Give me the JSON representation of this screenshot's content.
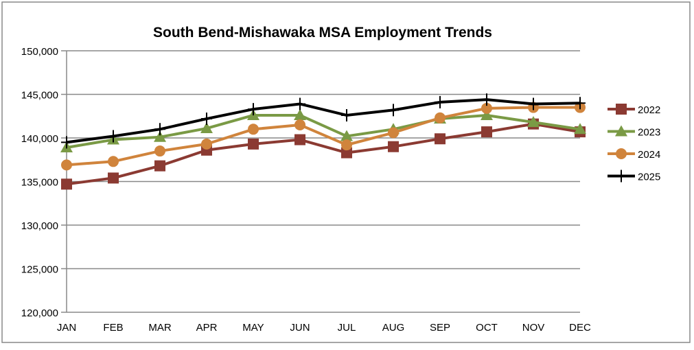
{
  "chart_data": {
    "type": "line",
    "title": "South Bend-Mishawaka MSA Employment Trends",
    "xlabel": "",
    "ylabel": "",
    "categories": [
      "JAN",
      "FEB",
      "MAR",
      "APR",
      "MAY",
      "JUN",
      "JUL",
      "AUG",
      "SEP",
      "OCT",
      "NOV",
      "DEC"
    ],
    "ylim": [
      120000,
      150000
    ],
    "yticks": [
      120000,
      125000,
      130000,
      135000,
      140000,
      145000,
      150000
    ],
    "ytick_labels": [
      "120,000",
      "125,000",
      "130,000",
      "135,000",
      "140,000",
      "145,000",
      "150,000"
    ],
    "grid": true,
    "legend_position": "right",
    "series": [
      {
        "name": "2022",
        "color": "#8B3A32",
        "marker": "square",
        "values": [
          134700,
          135400,
          136800,
          138600,
          139300,
          139800,
          138300,
          139000,
          139900,
          140700,
          141600,
          140700
        ]
      },
      {
        "name": "2023",
        "color": "#7A9A45",
        "marker": "triangle",
        "values": [
          138900,
          139800,
          140100,
          141100,
          142600,
          142600,
          140200,
          141000,
          142200,
          142600,
          141800,
          141000
        ]
      },
      {
        "name": "2024",
        "color": "#D0843C",
        "marker": "circle",
        "values": [
          136900,
          137300,
          138500,
          139300,
          141000,
          141500,
          139200,
          140600,
          142300,
          143400,
          143500,
          143500
        ]
      },
      {
        "name": "2025",
        "color": "#000000",
        "marker": "plus",
        "values": [
          139500,
          140200,
          141000,
          142200,
          143300,
          143900,
          142600,
          143200,
          144100,
          144400,
          143900,
          144000
        ]
      }
    ]
  }
}
